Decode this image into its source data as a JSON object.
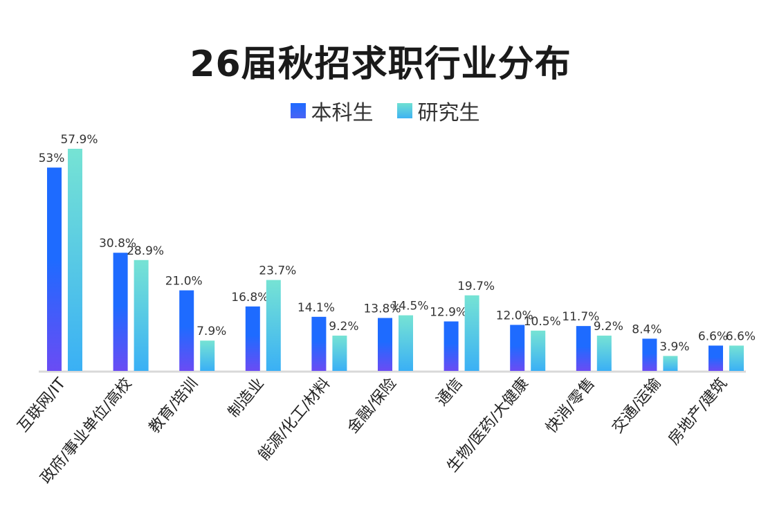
{
  "chart_data": {
    "type": "bar",
    "title": "26届秋招求职行业分布",
    "legend_placement": "top-center",
    "categories": [
      "互联网/IT",
      "政府/事业单位/高校",
      "教育/培训",
      "制造业",
      "能源/化工/材料",
      "金融/保险",
      "通信",
      "生物/医药/大健康",
      "快消/零售",
      "交通/运输",
      "房地产/建筑"
    ],
    "series": [
      {
        "name": "本科生",
        "values": [
          53,
          30.8,
          21.0,
          16.8,
          14.1,
          13.8,
          12.9,
          12.0,
          11.7,
          8.4,
          6.6
        ],
        "labels": [
          "53%",
          "30.8%",
          "21.0%",
          "16.8%",
          "14.1%",
          "13.8%",
          "12.9%",
          "12.0%",
          "11.7%",
          "8.4%",
          "6.6%"
        ]
      },
      {
        "name": "研究生",
        "values": [
          57.9,
          28.9,
          7.9,
          23.7,
          9.2,
          14.5,
          19.7,
          10.5,
          9.2,
          3.9,
          6.6
        ],
        "labels": [
          "57.9%",
          "28.9%",
          "7.9%",
          "23.7%",
          "9.2%",
          "14.5%",
          "19.7%",
          "10.5%",
          "9.2%",
          "3.9%",
          "6.6%"
        ]
      }
    ],
    "ylim": [
      0,
      60
    ],
    "grid": false,
    "colors": {
      "series_a_top": "#1e6bff",
      "series_a_bottom": "#6a4cf4",
      "series_b_top": "#76e3d4",
      "series_b_bottom": "#3ab0f5",
      "axis": "#d9d9d9"
    }
  }
}
